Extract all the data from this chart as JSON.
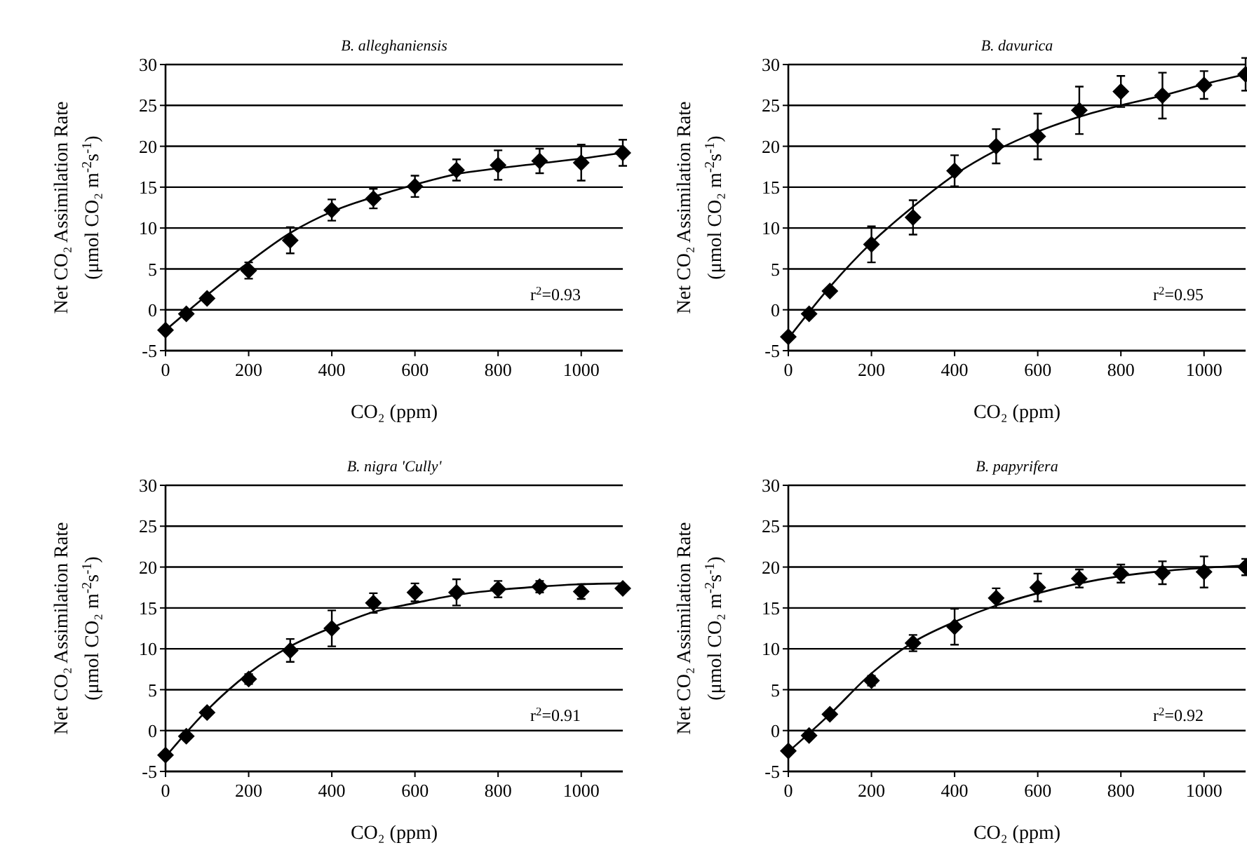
{
  "chart_data": [
    {
      "type": "scatter",
      "title": "B. alleghaniensis",
      "xlabel": "CO₂ (ppm)",
      "ylabel": "Net CO₂ Assimilation Rate (μmol CO₂ m$^{-2}$s$^{-1}$)",
      "xlim": [
        0,
        1100
      ],
      "xticks": [
        0,
        200,
        400,
        600,
        800,
        1000
      ],
      "ylim": [
        -5,
        30
      ],
      "yticks": [
        -5,
        0,
        5,
        10,
        15,
        20,
        25,
        30
      ],
      "grid": "y",
      "annotations": [
        "r$^{2}$=0.93"
      ],
      "series": [
        {
          "color": "#000000",
          "marker": "diamond",
          "x": [
            0,
            50,
            100,
            200,
            300,
            400,
            500,
            600,
            700,
            800,
            900,
            1000,
            1100
          ],
          "values": [
            -2.5,
            -0.5,
            1.4,
            4.8,
            8.5,
            12.2,
            13.6,
            15.1,
            17.1,
            17.7,
            18.2,
            18,
            19.2
          ],
          "errors": [
            null,
            null,
            null,
            1,
            1.6,
            1.3,
            1.2,
            1.3,
            1.3,
            1.8,
            1.5,
            2.2,
            1.6
          ]
        },
        {
          "type": "line",
          "color": "#000000",
          "x": [
            0,
            100,
            200,
            300,
            400,
            500,
            600,
            700,
            800,
            900,
            1000,
            1100
          ],
          "values": [
            -2.5,
            1.8,
            5.8,
            9.4,
            12,
            13.8,
            15.3,
            16.6,
            17.3,
            17.9,
            18.5,
            19.2
          ]
        }
      ]
    },
    {
      "type": "scatter",
      "title": "B. davurica",
      "xlabel": "CO₂ (ppm)",
      "ylabel": "Net CO₂ Assimilation Rate (μmol CO₂ m$^{-2}$s$^{-1}$)",
      "xlim": [
        0,
        1100
      ],
      "xticks": [
        0,
        200,
        400,
        600,
        800,
        1000
      ],
      "ylim": [
        -5,
        30
      ],
      "yticks": [
        -5,
        0,
        5,
        10,
        15,
        20,
        25,
        30
      ],
      "grid": "y",
      "annotations": [
        "r$^{2}$=0.95"
      ],
      "series": [
        {
          "color": "#000000",
          "marker": "diamond",
          "x": [
            0,
            50,
            100,
            200,
            300,
            400,
            500,
            600,
            700,
            800,
            900,
            1000,
            1100
          ],
          "values": [
            -3.3,
            -0.5,
            2.3,
            8,
            11.3,
            17,
            20,
            21.2,
            24.4,
            26.7,
            26.2,
            27.5,
            28.8
          ],
          "errors": [
            null,
            null,
            null,
            2.2,
            2.1,
            1.9,
            2.1,
            2.8,
            2.9,
            1.9,
            2.8,
            1.7,
            2
          ]
        },
        {
          "type": "line",
          "color": "#000000",
          "x": [
            0,
            100,
            200,
            300,
            400,
            500,
            600,
            700,
            800,
            900,
            1000,
            1100
          ],
          "values": [
            -3.5,
            2.8,
            8.2,
            12.6,
            16.5,
            19.5,
            21.8,
            23.6,
            25,
            26.2,
            27.6,
            28.8
          ]
        }
      ]
    },
    {
      "type": "scatter",
      "title": "B. nigra 'Cully'",
      "xlabel": "CO₂ (ppm)",
      "ylabel": "Net CO₂ Assimilation Rate (μmol CO₂ m$^{-2}$s$^{-1}$)",
      "xlim": [
        0,
        1100
      ],
      "xticks": [
        0,
        200,
        400,
        600,
        800,
        1000
      ],
      "ylim": [
        -5,
        30
      ],
      "yticks": [
        -5,
        0,
        5,
        10,
        15,
        20,
        25,
        30
      ],
      "grid": "y",
      "annotations": [
        "r$^{2}$=0.91"
      ],
      "series": [
        {
          "color": "#000000",
          "marker": "diamond",
          "x": [
            0,
            50,
            100,
            200,
            300,
            400,
            500,
            600,
            700,
            800,
            900,
            1000,
            1100
          ],
          "values": [
            -3,
            -0.7,
            2.2,
            6.3,
            9.8,
            12.5,
            15.6,
            16.9,
            16.9,
            17.3,
            17.6,
            17,
            17.4
          ],
          "errors": [
            null,
            null,
            null,
            0.6,
            1.4,
            2.2,
            1.2,
            1.1,
            1.6,
            1,
            0.7,
            0.9,
            null
          ]
        },
        {
          "type": "line",
          "color": "#000000",
          "x": [
            0,
            100,
            200,
            300,
            400,
            500,
            600,
            700,
            800,
            900,
            1000,
            1100
          ],
          "values": [
            -3.2,
            2.5,
            7,
            10.3,
            12.6,
            14.5,
            15.6,
            16.6,
            17.2,
            17.6,
            17.9,
            18
          ]
        }
      ]
    },
    {
      "type": "scatter",
      "title": "B. papyrifera",
      "xlabel": "CO₂ (ppm)",
      "ylabel": "Net CO₂ Assimilation Rate (μmol CO₂ m$^{-2}$s$^{-1}$)",
      "xlim": [
        0,
        1100
      ],
      "xticks": [
        0,
        200,
        400,
        600,
        800,
        1000
      ],
      "ylim": [
        -5,
        30
      ],
      "yticks": [
        -5,
        0,
        5,
        10,
        15,
        20,
        25,
        30
      ],
      "grid": "y",
      "annotations": [
        "r$^{2}$=0.92"
      ],
      "series": [
        {
          "color": "#000000",
          "marker": "diamond",
          "x": [
            0,
            50,
            100,
            200,
            300,
            400,
            500,
            600,
            700,
            800,
            900,
            1000,
            1100
          ],
          "values": [
            -2.5,
            -0.6,
            2,
            6.1,
            10.7,
            12.7,
            16.2,
            17.5,
            18.6,
            19.2,
            19.3,
            19.4,
            20
          ],
          "errors": [
            null,
            null,
            null,
            0.6,
            1,
            2.2,
            1.2,
            1.7,
            1.1,
            1.1,
            1.4,
            1.9,
            1
          ]
        },
        {
          "type": "line",
          "color": "#000000",
          "x": [
            0,
            100,
            200,
            300,
            400,
            500,
            600,
            700,
            800,
            900,
            1000,
            1100
          ],
          "values": [
            -2.6,
            2,
            7,
            10.8,
            13.3,
            15.3,
            16.8,
            18,
            18.9,
            19.5,
            19.9,
            20.2
          ]
        }
      ]
    }
  ]
}
